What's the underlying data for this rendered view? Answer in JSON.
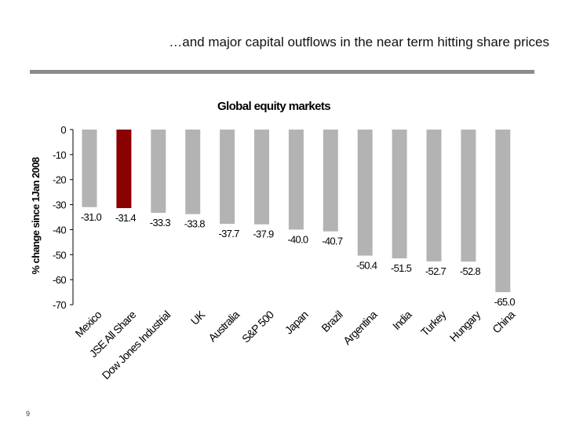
{
  "slide": {
    "title": "…and major capital outflows in the near term hitting share prices",
    "page_number": "9"
  },
  "chart_data": {
    "type": "bar",
    "title": "Global equity markets",
    "xlabel": "",
    "ylabel": "% change since 1Jan 2008",
    "ylim": [
      -70,
      0
    ],
    "yticks": [
      0,
      -10,
      -20,
      -30,
      -40,
      -50,
      -60,
      -70
    ],
    "grid": false,
    "legend": "none",
    "categories": [
      "Mexico",
      "JSE All Share",
      "Dow Jones Industrial",
      "UK",
      "Australia",
      "S&P 500",
      "Japan",
      "Brazil",
      "Argentina",
      "India",
      "Turkey",
      "Hungary",
      "China"
    ],
    "values": [
      -31.0,
      -31.4,
      -33.3,
      -33.8,
      -37.7,
      -37.9,
      -40.0,
      -40.7,
      -50.4,
      -51.5,
      -52.7,
      -52.8,
      -65.0
    ],
    "data_labels": [
      "-31.0",
      "-31.4",
      "-33.3",
      "-33.8",
      "-37.7",
      "-37.9",
      "-40.0",
      "-40.7",
      "-50.4",
      "-51.5",
      "-52.7",
      "-52.8",
      "-65.0"
    ],
    "colors": {
      "default_bar": "#b3b3b3",
      "highlight_bar": "#8b0000"
    },
    "highlight_index": 1
  }
}
